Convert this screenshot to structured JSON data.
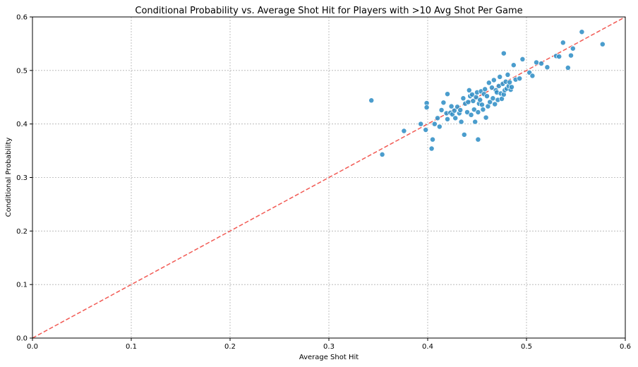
{
  "chart_data": {
    "type": "scatter",
    "title": "Conditional Probability vs. Average Shot Hit for Players with >10 Avg Shot Per Game",
    "xlabel": "Average Shot Hit",
    "ylabel": "Conditional Probability",
    "xlim": [
      0.0,
      0.6
    ],
    "ylim": [
      0.0,
      0.6
    ],
    "xticks": [
      0.0,
      0.1,
      0.2,
      0.3,
      0.4,
      0.5,
      0.6
    ],
    "yticks": [
      0.0,
      0.1,
      0.2,
      0.3,
      0.4,
      0.5,
      0.6
    ],
    "xtick_labels": [
      "0.0",
      "0.1",
      "0.2",
      "0.3",
      "0.4",
      "0.5",
      "0.6"
    ],
    "ytick_labels": [
      "0.0",
      "0.1",
      "0.2",
      "0.3",
      "0.4",
      "0.5",
      "0.6"
    ],
    "grid": true,
    "reference_line": {
      "label": "",
      "x": [
        0.0,
        0.6
      ],
      "y": [
        0.0,
        0.6
      ],
      "style": "dashed",
      "color": "#f25a54"
    },
    "point_color": "#2b8cc4",
    "points": [
      [
        0.343,
        0.444
      ],
      [
        0.354,
        0.343
      ],
      [
        0.376,
        0.387
      ],
      [
        0.393,
        0.4
      ],
      [
        0.398,
        0.389
      ],
      [
        0.399,
        0.439
      ],
      [
        0.399,
        0.431
      ],
      [
        0.404,
        0.354
      ],
      [
        0.405,
        0.371
      ],
      [
        0.407,
        0.4
      ],
      [
        0.41,
        0.411
      ],
      [
        0.412,
        0.395
      ],
      [
        0.414,
        0.426
      ],
      [
        0.416,
        0.44
      ],
      [
        0.419,
        0.42
      ],
      [
        0.42,
        0.409
      ],
      [
        0.42,
        0.456
      ],
      [
        0.423,
        0.421
      ],
      [
        0.424,
        0.433
      ],
      [
        0.425,
        0.418
      ],
      [
        0.427,
        0.425
      ],
      [
        0.428,
        0.411
      ],
      [
        0.43,
        0.432
      ],
      [
        0.432,
        0.42
      ],
      [
        0.433,
        0.426
      ],
      [
        0.434,
        0.404
      ],
      [
        0.436,
        0.448
      ],
      [
        0.437,
        0.38
      ],
      [
        0.438,
        0.438
      ],
      [
        0.44,
        0.422
      ],
      [
        0.441,
        0.441
      ],
      [
        0.442,
        0.463
      ],
      [
        0.443,
        0.452
      ],
      [
        0.444,
        0.417
      ],
      [
        0.445,
        0.455
      ],
      [
        0.446,
        0.443
      ],
      [
        0.447,
        0.427
      ],
      [
        0.448,
        0.404
      ],
      [
        0.449,
        0.45
      ],
      [
        0.45,
        0.459
      ],
      [
        0.451,
        0.371
      ],
      [
        0.451,
        0.422
      ],
      [
        0.452,
        0.438
      ],
      [
        0.453,
        0.445
      ],
      [
        0.454,
        0.461
      ],
      [
        0.455,
        0.436
      ],
      [
        0.456,
        0.427
      ],
      [
        0.457,
        0.456
      ],
      [
        0.458,
        0.465
      ],
      [
        0.459,
        0.412
      ],
      [
        0.46,
        0.452
      ],
      [
        0.461,
        0.433
      ],
      [
        0.462,
        0.477
      ],
      [
        0.463,
        0.441
      ],
      [
        0.465,
        0.468
      ],
      [
        0.466,
        0.448
      ],
      [
        0.467,
        0.482
      ],
      [
        0.468,
        0.437
      ],
      [
        0.469,
        0.463
      ],
      [
        0.47,
        0.459
      ],
      [
        0.471,
        0.445
      ],
      [
        0.472,
        0.471
      ],
      [
        0.473,
        0.488
      ],
      [
        0.474,
        0.457
      ],
      [
        0.475,
        0.447
      ],
      [
        0.476,
        0.475
      ],
      [
        0.477,
        0.455
      ],
      [
        0.477,
        0.532
      ],
      [
        0.478,
        0.463
      ],
      [
        0.479,
        0.479
      ],
      [
        0.48,
        0.466
      ],
      [
        0.481,
        0.492
      ],
      [
        0.482,
        0.471
      ],
      [
        0.483,
        0.478
      ],
      [
        0.484,
        0.464
      ],
      [
        0.485,
        0.469
      ],
      [
        0.487,
        0.51
      ],
      [
        0.489,
        0.483
      ],
      [
        0.493,
        0.485
      ],
      [
        0.496,
        0.521
      ],
      [
        0.503,
        0.496
      ],
      [
        0.506,
        0.49
      ],
      [
        0.51,
        0.515
      ],
      [
        0.515,
        0.513
      ],
      [
        0.521,
        0.506
      ],
      [
        0.53,
        0.527
      ],
      [
        0.533,
        0.526
      ],
      [
        0.537,
        0.552
      ],
      [
        0.542,
        0.505
      ],
      [
        0.545,
        0.528
      ],
      [
        0.547,
        0.541
      ],
      [
        0.556,
        0.572
      ],
      [
        0.577,
        0.549
      ]
    ]
  }
}
